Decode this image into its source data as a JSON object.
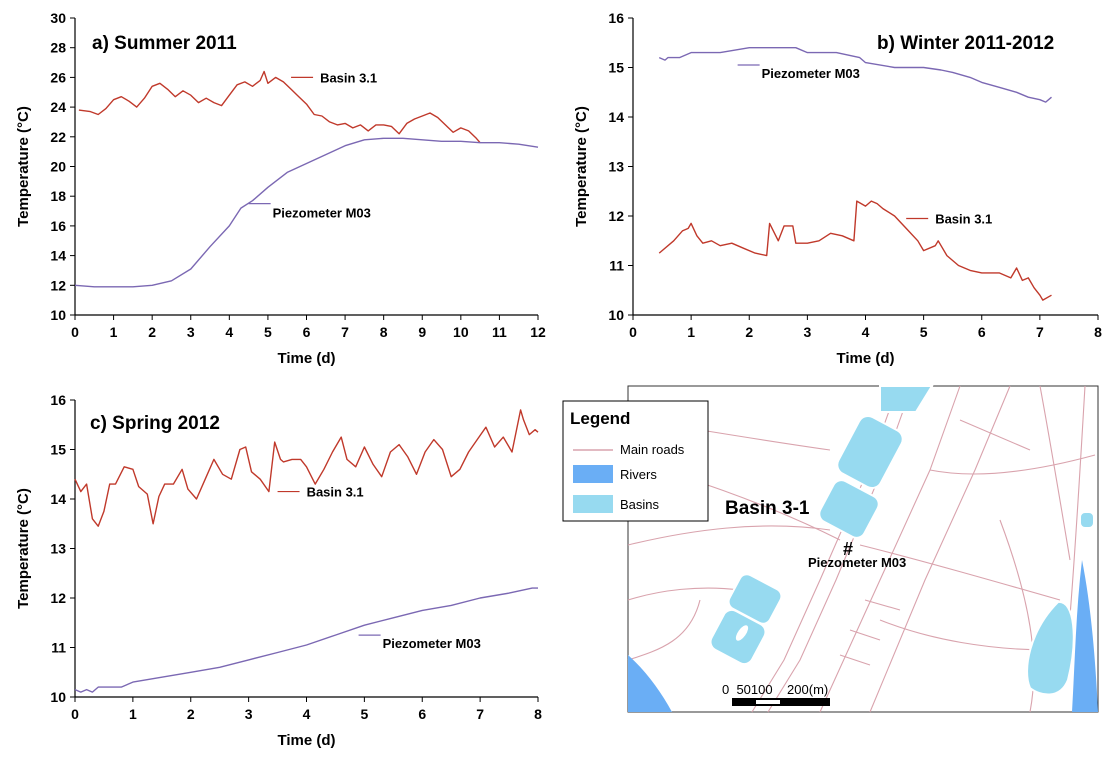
{
  "chart_data": [
    {
      "type": "line",
      "title": "a) Summer 2011",
      "xlabel": "Time (d)",
      "ylabel": "Temperature (°C)",
      "xlim": [
        0,
        12
      ],
      "ylim": [
        10,
        30
      ],
      "xticks": [
        0,
        1,
        2,
        3,
        4,
        5,
        6,
        7,
        8,
        9,
        10,
        11,
        12
      ],
      "yticks": [
        10,
        12,
        14,
        16,
        18,
        20,
        22,
        24,
        26,
        28,
        30
      ],
      "grid": false,
      "series": [
        {
          "name": "Basin 3.1",
          "color": "#c0392b",
          "x": [
            0.1,
            0.4,
            0.6,
            0.8,
            1.0,
            1.2,
            1.4,
            1.6,
            1.8,
            2.0,
            2.2,
            2.4,
            2.6,
            2.8,
            3.0,
            3.2,
            3.4,
            3.6,
            3.8,
            4.0,
            4.2,
            4.4,
            4.6,
            4.8,
            4.9,
            5.0,
            5.2,
            5.4,
            5.6,
            5.8,
            6.0,
            6.2,
            6.4,
            6.6,
            6.8,
            7.0,
            7.2,
            7.4,
            7.6,
            7.8,
            8.0,
            8.2,
            8.4,
            8.6,
            8.8,
            9.0,
            9.2,
            9.4,
            9.6,
            9.8,
            10.0,
            10.2,
            10.4,
            10.5
          ],
          "y": [
            23.8,
            23.7,
            23.5,
            23.9,
            24.5,
            24.7,
            24.4,
            24.0,
            24.6,
            25.4,
            25.6,
            25.2,
            24.7,
            25.1,
            24.8,
            24.3,
            24.6,
            24.3,
            24.1,
            24.8,
            25.5,
            25.7,
            25.4,
            25.8,
            26.4,
            25.6,
            26.0,
            25.7,
            25.2,
            24.7,
            24.2,
            23.5,
            23.4,
            23.0,
            22.8,
            22.9,
            22.6,
            22.8,
            22.4,
            22.8,
            22.8,
            22.7,
            22.2,
            22.9,
            23.2,
            23.4,
            23.6,
            23.3,
            22.8,
            22.3,
            22.6,
            22.4,
            21.9,
            21.6
          ]
        },
        {
          "name": "Piezometer M03",
          "color": "#7b68b3",
          "x": [
            0,
            0.5,
            1.0,
            1.5,
            2.0,
            2.5,
            3.0,
            3.5,
            4.0,
            4.3,
            4.6,
            5.0,
            5.5,
            6.0,
            6.5,
            7.0,
            7.5,
            8.0,
            8.5,
            9.0,
            9.5,
            10.0,
            10.5,
            11.0,
            11.5,
            12.0
          ],
          "y": [
            12.0,
            11.9,
            11.9,
            11.9,
            12.0,
            12.3,
            13.1,
            14.6,
            16.0,
            17.2,
            17.7,
            18.6,
            19.6,
            20.2,
            20.8,
            21.4,
            21.8,
            21.9,
            21.9,
            21.8,
            21.7,
            21.7,
            21.6,
            21.6,
            21.5,
            21.3
          ]
        }
      ],
      "annotations": [
        "Basin 3.1",
        "Piezometer M03"
      ]
    },
    {
      "type": "line",
      "title": "b) Winter 2011-2012",
      "xlabel": "Time (d)",
      "ylabel": "Temperature (°C)",
      "xlim": [
        0,
        8
      ],
      "ylim": [
        10,
        16
      ],
      "xticks": [
        0,
        1,
        2,
        3,
        4,
        5,
        6,
        7,
        8
      ],
      "yticks": [
        10,
        11,
        12,
        13,
        14,
        15,
        16
      ],
      "grid": false,
      "series": [
        {
          "name": "Piezometer M03",
          "color": "#7b68b3",
          "x": [
            0.45,
            0.55,
            0.6,
            0.8,
            1.0,
            1.2,
            1.5,
            2.0,
            2.4,
            2.5,
            2.8,
            3.0,
            3.5,
            3.9,
            4.0,
            4.5,
            5.0,
            5.3,
            5.5,
            5.8,
            6.0,
            6.3,
            6.6,
            6.8,
            7.0,
            7.1,
            7.2
          ],
          "y": [
            15.2,
            15.15,
            15.2,
            15.2,
            15.3,
            15.3,
            15.3,
            15.4,
            15.4,
            15.4,
            15.4,
            15.3,
            15.3,
            15.2,
            15.1,
            15.0,
            15.0,
            14.95,
            14.9,
            14.8,
            14.7,
            14.6,
            14.5,
            14.4,
            14.35,
            14.3,
            14.4
          ]
        },
        {
          "name": "Basin 3.1",
          "color": "#c0392b",
          "x": [
            0.45,
            0.7,
            0.85,
            0.95,
            1.0,
            1.1,
            1.2,
            1.35,
            1.5,
            1.7,
            1.9,
            2.1,
            2.3,
            2.35,
            2.5,
            2.6,
            2.75,
            2.8,
            3.0,
            3.2,
            3.4,
            3.6,
            3.8,
            3.85,
            4.0,
            4.1,
            4.2,
            4.3,
            4.5,
            4.7,
            4.9,
            5.0,
            5.2,
            5.25,
            5.4,
            5.6,
            5.8,
            6.0,
            6.3,
            6.5,
            6.6,
            6.7,
            6.8,
            6.9,
            7.0,
            7.05,
            7.2
          ],
          "y": [
            11.25,
            11.5,
            11.7,
            11.75,
            11.85,
            11.6,
            11.45,
            11.5,
            11.4,
            11.45,
            11.35,
            11.25,
            11.2,
            11.85,
            11.5,
            11.8,
            11.8,
            11.45,
            11.45,
            11.5,
            11.65,
            11.6,
            11.5,
            12.3,
            12.2,
            12.3,
            12.25,
            12.15,
            12.0,
            11.75,
            11.5,
            11.3,
            11.4,
            11.5,
            11.2,
            11.0,
            10.9,
            10.85,
            10.85,
            10.75,
            10.95,
            10.7,
            10.75,
            10.55,
            10.4,
            10.3,
            10.4
          ]
        }
      ],
      "annotations": [
        "Piezometer M03",
        "Basin 3.1"
      ]
    },
    {
      "type": "line",
      "title": "c) Spring 2012",
      "xlabel": "Time (d)",
      "ylabel": "Temperature (°C)",
      "xlim": [
        0,
        8
      ],
      "ylim": [
        10,
        16
      ],
      "xticks": [
        0,
        1,
        2,
        3,
        4,
        5,
        6,
        7,
        8
      ],
      "yticks": [
        10,
        11,
        12,
        13,
        14,
        15,
        16
      ],
      "grid": false,
      "series": [
        {
          "name": "Basin 3.1",
          "color": "#c0392b",
          "x": [
            0,
            0.1,
            0.2,
            0.3,
            0.4,
            0.5,
            0.6,
            0.7,
            0.85,
            1.0,
            1.1,
            1.25,
            1.35,
            1.45,
            1.55,
            1.7,
            1.85,
            1.95,
            2.1,
            2.25,
            2.4,
            2.55,
            2.7,
            2.85,
            2.95,
            3.05,
            3.2,
            3.35,
            3.45,
            3.55,
            3.6,
            3.75,
            3.9,
            4.0,
            4.15,
            4.3,
            4.45,
            4.6,
            4.7,
            4.85,
            5.0,
            5.15,
            5.3,
            5.45,
            5.6,
            5.75,
            5.9,
            6.05,
            6.2,
            6.35,
            6.5,
            6.65,
            6.8,
            6.95,
            7.1,
            7.25,
            7.4,
            7.55,
            7.7,
            7.75,
            7.85,
            7.95,
            8.0
          ],
          "y": [
            14.4,
            14.15,
            14.3,
            13.6,
            13.45,
            13.75,
            14.3,
            14.3,
            14.65,
            14.6,
            14.25,
            14.1,
            13.5,
            14.05,
            14.3,
            14.3,
            14.6,
            14.2,
            14.0,
            14.4,
            14.8,
            14.5,
            14.4,
            15.0,
            15.05,
            14.55,
            14.4,
            14.15,
            15.15,
            14.8,
            14.75,
            14.8,
            14.8,
            14.65,
            14.3,
            14.6,
            14.95,
            15.25,
            14.8,
            14.65,
            15.05,
            14.7,
            14.45,
            14.95,
            15.1,
            14.85,
            14.5,
            14.95,
            15.2,
            15.0,
            14.45,
            14.6,
            14.95,
            15.2,
            15.45,
            15.05,
            15.25,
            14.95,
            15.8,
            15.6,
            15.3,
            15.4,
            15.35
          ]
        },
        {
          "name": "Piezometer M03",
          "color": "#7b68b3",
          "x": [
            0,
            0.1,
            0.2,
            0.3,
            0.4,
            0.8,
            1.0,
            1.5,
            2.0,
            2.5,
            3.0,
            3.5,
            4.0,
            4.5,
            5.0,
            5.5,
            6.0,
            6.5,
            7.0,
            7.5,
            7.9,
            8.0
          ],
          "y": [
            10.15,
            10.1,
            10.15,
            10.1,
            10.2,
            10.2,
            10.3,
            10.4,
            10.5,
            10.6,
            10.75,
            10.9,
            11.05,
            11.25,
            11.45,
            11.6,
            11.75,
            11.85,
            12.0,
            12.1,
            12.2,
            12.2
          ]
        }
      ],
      "annotations": [
        "Basin 3.1",
        "Piezometer M03"
      ]
    }
  ],
  "map": {
    "legend_title": "Legend",
    "legend_items": [
      {
        "label": "Main roads",
        "color": "#d9a3ad"
      },
      {
        "label": "Rivers",
        "color": "#6aaef5"
      },
      {
        "label": "Basins",
        "color": "#97daf0"
      }
    ],
    "basin_label": "Basin 3-1",
    "piezometer_symbol": "#",
    "piezometer_label": "Piezometer M03",
    "scale_label": "0  50100    200(m)"
  }
}
